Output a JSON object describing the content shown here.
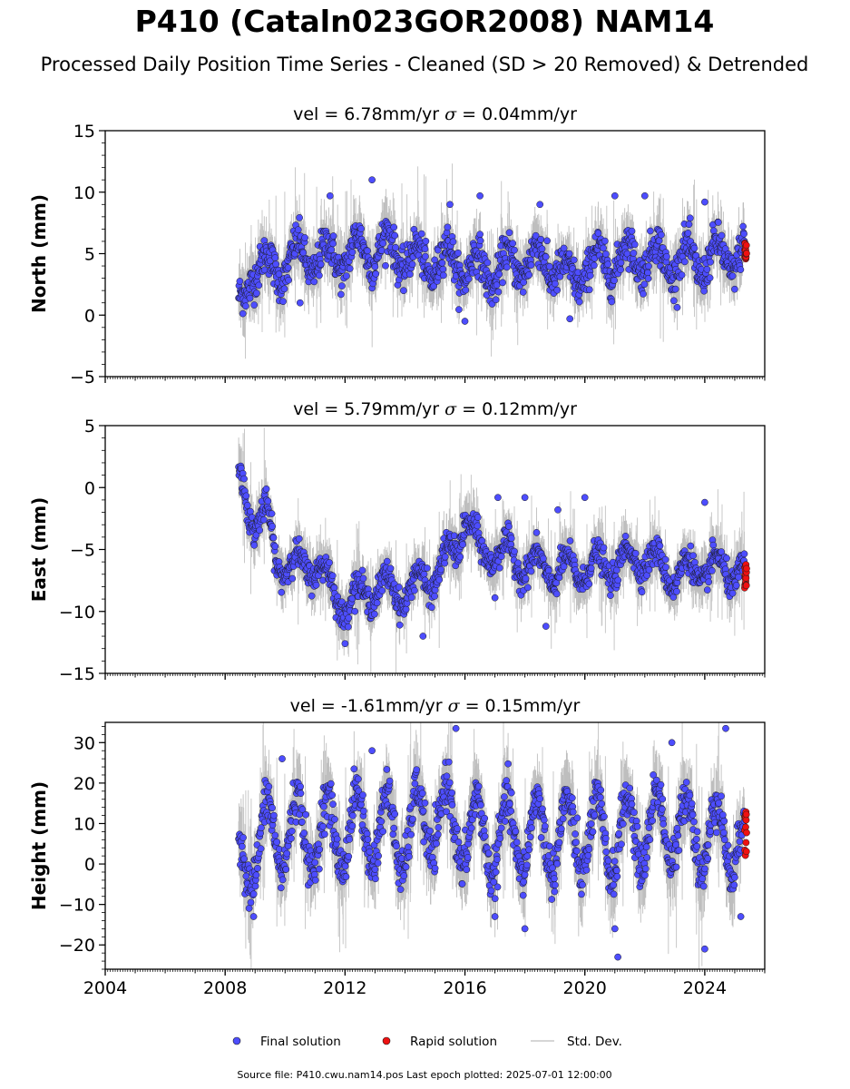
{
  "page": {
    "title": "P410 (Cataln023GOR2008) NAM14",
    "subtitle": "Processed Daily Position Time Series - Cleaned (SD > 20 Removed) & Detrended",
    "footer": "Source file: P410.cwu.nam14.pos  Last epoch plotted: 2025-07-01 12:00:00"
  },
  "legend": {
    "final": "Final solution",
    "rapid": "Rapid solution",
    "sd": "Std. Dev."
  },
  "colors": {
    "final": "#4d4dff",
    "rapid": "#ee1111",
    "sd": "#c8c8c8",
    "edge": "#1a1a1a"
  },
  "chart_data": [
    {
      "type": "scatter",
      "panel": "north",
      "title_vel": "vel = 6.78mm/yr",
      "title_sigma": "= 0.04mm/yr",
      "ylabel": "North (mm)",
      "xlim": [
        2004,
        2026
      ],
      "ylim": [
        -5,
        15
      ],
      "yticks": [
        -5,
        0,
        5,
        10,
        15
      ],
      "xticks": [
        2004,
        2008,
        2012,
        2016,
        2020,
        2024
      ],
      "xlabels_shown": false,
      "data_start": 2008.45,
      "rapid_start": 2025.33,
      "data_end": 2025.5,
      "series_profile": [
        [
          2008.45,
          0.3
        ],
        [
          2008.55,
          0.8
        ],
        [
          2008.9,
          4.2
        ],
        [
          2009.5,
          3.5
        ],
        [
          2010.5,
          4.8
        ],
        [
          2011.5,
          4.6
        ],
        [
          2012.5,
          5.2
        ],
        [
          2013.5,
          5.4
        ],
        [
          2014.5,
          4.2
        ],
        [
          2015.5,
          4.5
        ],
        [
          2016.0,
          4.0
        ],
        [
          2017.0,
          3.5
        ],
        [
          2018.0,
          4.5
        ],
        [
          2019.0,
          4.2
        ],
        [
          2019.5,
          2.5
        ],
        [
          2020.0,
          4.0
        ],
        [
          2021.0,
          4.5
        ],
        [
          2022.0,
          4.8
        ],
        [
          2023.0,
          4.3
        ],
        [
          2024.0,
          4.5
        ],
        [
          2025.4,
          5.0
        ]
      ],
      "seasonal_amplitude": 1.4,
      "scatter_spread": 1.4,
      "sd_spread": 1.5,
      "outliers": [
        [
          2012.9,
          11.0
        ],
        [
          2011.5,
          9.7
        ],
        [
          2016.5,
          9.7
        ],
        [
          2021.0,
          9.7
        ],
        [
          2022.0,
          9.7
        ],
        [
          2024.0,
          9.2
        ],
        [
          2015.5,
          9.0
        ],
        [
          2018.5,
          9.0
        ],
        [
          2010.5,
          1.0
        ],
        [
          2016.0,
          -0.5
        ],
        [
          2019.5,
          -0.3
        ]
      ],
      "rapid_range": [
        4.5,
        5.9
      ]
    },
    {
      "type": "scatter",
      "panel": "east",
      "title_vel": "vel = 5.79mm/yr",
      "title_sigma": "= 0.12mm/yr",
      "ylabel": "East (mm)",
      "xlim": [
        2004,
        2026
      ],
      "ylim": [
        -15,
        5
      ],
      "yticks": [
        -15,
        -10,
        -5,
        0,
        5
      ],
      "xticks": [
        2004,
        2008,
        2012,
        2016,
        2020,
        2024
      ],
      "xlabels_shown": false,
      "data_start": 2008.45,
      "rapid_start": 2025.33,
      "data_end": 2025.5,
      "series_profile": [
        [
          2008.45,
          0.5
        ],
        [
          2008.6,
          0.0
        ],
        [
          2008.95,
          -2.5
        ],
        [
          2009.4,
          -2.5
        ],
        [
          2009.7,
          -5.8
        ],
        [
          2010.5,
          -6.5
        ],
        [
          2011.0,
          -6.0
        ],
        [
          2011.5,
          -8.0
        ],
        [
          2012.0,
          -9.5
        ],
        [
          2013.0,
          -8.0
        ],
        [
          2014.0,
          -8.5
        ],
        [
          2015.0,
          -7.0
        ],
        [
          2015.7,
          -5.0
        ],
        [
          2016.0,
          -2.0
        ],
        [
          2016.5,
          -5.5
        ],
        [
          2017.0,
          -5.0
        ],
        [
          2018.0,
          -6.2
        ],
        [
          2019.0,
          -6.8
        ],
        [
          2020.0,
          -6.5
        ],
        [
          2021.0,
          -6.3
        ],
        [
          2022.0,
          -5.5
        ],
        [
          2022.5,
          -6.5
        ],
        [
          2023.0,
          -7.0
        ],
        [
          2024.0,
          -6.5
        ],
        [
          2025.4,
          -6.8
        ]
      ],
      "seasonal_amplitude": 1.2,
      "scatter_spread": 1.0,
      "sd_spread": 1.4,
      "outliers": [
        [
          2017.1,
          -0.8
        ],
        [
          2018.0,
          -0.8
        ],
        [
          2019.1,
          -1.8
        ],
        [
          2020.0,
          -0.8
        ],
        [
          2024.0,
          -1.2
        ],
        [
          2018.7,
          -11.2
        ],
        [
          2012.0,
          -12.6
        ],
        [
          2014.6,
          -12.0
        ],
        [
          2017.0,
          -8.9
        ]
      ],
      "rapid_range": [
        -8.2,
        -6.2
      ]
    },
    {
      "type": "scatter",
      "panel": "height",
      "title_vel": "vel = -1.61mm/yr",
      "title_sigma": "= 0.15mm/yr",
      "ylabel": "Height (mm)",
      "xlim": [
        2004,
        2026
      ],
      "ylim": [
        -26,
        35
      ],
      "yticks": [
        -20,
        -10,
        0,
        10,
        20,
        30
      ],
      "xticks": [
        2004,
        2008,
        2012,
        2016,
        2020,
        2024
      ],
      "xtick_labels": [
        "2004",
        "2008",
        "2012",
        "2016",
        "2020",
        "2024"
      ],
      "xlabels_shown": true,
      "data_start": 2008.45,
      "rapid_start": 2025.33,
      "data_end": 2025.5,
      "series_profile": [
        [
          2008.45,
          -2.0
        ],
        [
          2009.0,
          5.0
        ],
        [
          2010.0,
          8.0
        ],
        [
          2011.0,
          7.0
        ],
        [
          2012.0,
          8.0
        ],
        [
          2013.0,
          9.0
        ],
        [
          2014.0,
          7.0
        ],
        [
          2015.0,
          12.0
        ],
        [
          2016.0,
          8.0
        ],
        [
          2017.0,
          6.0
        ],
        [
          2018.0,
          7.0
        ],
        [
          2019.0,
          7.0
        ],
        [
          2020.0,
          7.0
        ],
        [
          2021.0,
          6.0
        ],
        [
          2022.0,
          9.0
        ],
        [
          2023.0,
          9.0
        ],
        [
          2024.0,
          7.0
        ],
        [
          2025.4,
          6.0
        ]
      ],
      "seasonal_amplitude": 9.5,
      "scatter_spread": 5.0,
      "sd_spread": 6.0,
      "outliers": [
        [
          2015.7,
          33.5
        ],
        [
          2024.7,
          33.5
        ],
        [
          2012.9,
          28.0
        ],
        [
          2009.9,
          26.0
        ],
        [
          2022.9,
          30.0
        ],
        [
          2021.1,
          -23.0
        ],
        [
          2024.0,
          -21.0
        ],
        [
          2021.0,
          -16.0
        ],
        [
          2018.0,
          -16.0
        ],
        [
          2017.0,
          -13.0
        ],
        [
          2008.95,
          -13.0
        ],
        [
          2025.2,
          -13.0
        ]
      ],
      "rapid_range": [
        1.5,
        14.5
      ]
    }
  ]
}
